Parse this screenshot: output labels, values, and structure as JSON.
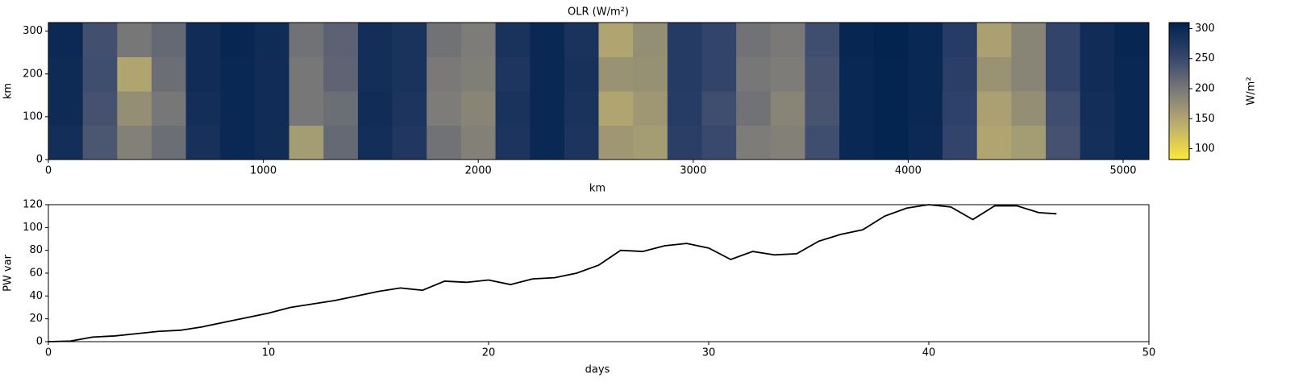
{
  "chart_data": [
    {
      "type": "heatmap",
      "title": "OLR (W/m²)",
      "xlabel": "km",
      "ylabel": "km",
      "xlim": [
        0,
        5120
      ],
      "ylim": [
        0,
        320
      ],
      "xticks": [
        0,
        1000,
        2000,
        3000,
        4000,
        5000
      ],
      "yticks": [
        0,
        100,
        200,
        300
      ],
      "clim": [
        82,
        310
      ],
      "colormap": [
        "#fee838",
        "#bcaf6f",
        "#7c7b78",
        "#35456c",
        "#00224e"
      ],
      "colorbar_label": "W/m²",
      "colorbar_ticks": [
        100,
        150,
        200,
        250,
        300
      ],
      "values": [
        [
          290,
          235,
          190,
          210,
          285,
          300,
          292,
          160,
          215,
          290,
          275,
          205,
          190,
          280,
          300,
          280,
          165,
          160,
          265,
          250,
          195,
          190,
          245,
          300,
          305,
          298,
          255,
          150,
          160,
          240,
          288,
          300
        ],
        [
          295,
          240,
          175,
          200,
          290,
          300,
          292,
          200,
          210,
          292,
          280,
          195,
          185,
          282,
          300,
          282,
          150,
          165,
          268,
          245,
          205,
          185,
          238,
          300,
          305,
          300,
          260,
          155,
          175,
          245,
          290,
          300
        ],
        [
          295,
          245,
          150,
          210,
          292,
          300,
          292,
          200,
          220,
          290,
          282,
          198,
          192,
          278,
          300,
          285,
          170,
          172,
          270,
          255,
          200,
          195,
          240,
          300,
          305,
          300,
          265,
          170,
          185,
          255,
          292,
          300
        ],
        [
          298,
          242,
          200,
          215,
          292,
          302,
          294,
          205,
          222,
          290,
          282,
          205,
          195,
          282,
          300,
          282,
          150,
          175,
          270,
          255,
          205,
          198,
          245,
          302,
          306,
          300,
          268,
          155,
          185,
          255,
          292,
          302
        ]
      ]
    },
    {
      "type": "line",
      "xlabel": "days",
      "ylabel": "PW var",
      "color": "#000000",
      "xlim": [
        0,
        50
      ],
      "ylim": [
        0,
        120
      ],
      "xticks": [
        0,
        10,
        20,
        30,
        40,
        50
      ],
      "yticks": [
        0,
        20,
        40,
        60,
        80,
        100,
        120
      ],
      "x": [
        0,
        1,
        2,
        3,
        4,
        5,
        6,
        7,
        8,
        9,
        10,
        11,
        12,
        13,
        14,
        15,
        16,
        17,
        18,
        19,
        20,
        21,
        22,
        23,
        24,
        25,
        26,
        27,
        28,
        29,
        30,
        31,
        32,
        33,
        34,
        35,
        36,
        37,
        38,
        39,
        40,
        41,
        42,
        43,
        44,
        45,
        45.8
      ],
      "values": [
        0,
        0.5,
        4,
        5,
        7,
        9,
        10,
        13,
        17,
        21,
        25,
        30,
        33,
        36,
        40,
        44,
        47,
        45,
        53,
        52,
        54,
        50,
        55,
        56,
        60,
        67,
        80,
        79,
        84,
        86,
        82,
        72,
        79,
        76,
        77,
        88,
        94,
        98,
        110,
        117,
        120,
        118,
        107,
        119,
        119,
        113,
        112
      ]
    }
  ]
}
